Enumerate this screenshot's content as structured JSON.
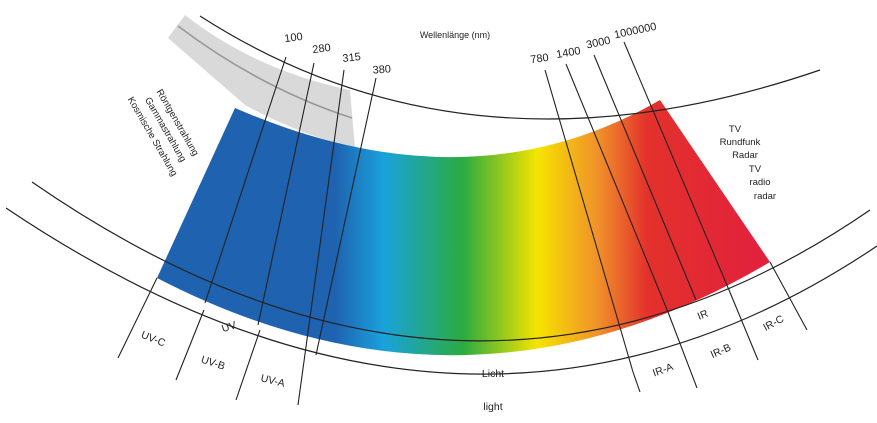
{
  "title": "Wellenlänge (nm)",
  "wavelength_marks": [
    "100",
    "280",
    "315",
    "380",
    "780",
    "1400",
    "3000",
    "1000000"
  ],
  "left_labels": [
    "Röntgenstrahlung",
    "Gammastrahlung",
    "Kosmische Strahlung"
  ],
  "right_labels_de": [
    "TV",
    "Rundfunk",
    "Radar"
  ],
  "right_labels_en": [
    "TV",
    "radio",
    "radar"
  ],
  "uv_label": "UV",
  "ir_label": "IR",
  "uv_bands": [
    "UV-C",
    "UV-B",
    "UV-A"
  ],
  "ir_bands": [
    "IR-A",
    "IR-B",
    "IR-C"
  ],
  "light_de": "Licht",
  "light_en": "light",
  "colors": {
    "uv_blue": "#1e62b0",
    "cyan": "#1aa2dc",
    "green": "#2bab3f",
    "yellow": "#f6e400",
    "orange": "#f0902a",
    "red": "#e3312c",
    "crimson": "#e2203e",
    "grey_band": "#d9d9d9"
  }
}
